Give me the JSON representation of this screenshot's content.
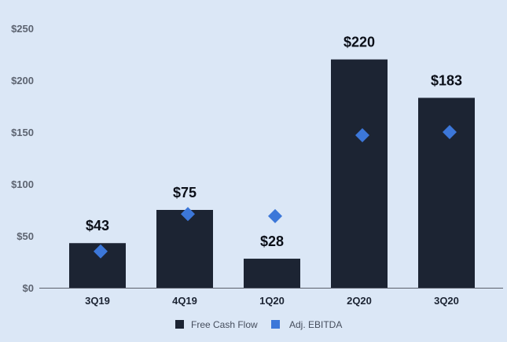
{
  "chart_data": {
    "type": "bar",
    "title": "",
    "xlabel": "",
    "ylabel": "",
    "categories": [
      "3Q19",
      "4Q19",
      "1Q20",
      "2Q20",
      "3Q20"
    ],
    "ylim": [
      0,
      250
    ],
    "yticks": [
      0,
      50,
      100,
      150,
      200,
      250
    ],
    "ytick_labels": [
      "$0",
      "$50",
      "$100",
      "$150",
      "$200",
      "$250"
    ],
    "grid": false,
    "legend_position": "bottom-center",
    "series": [
      {
        "name": "Free Cash Flow",
        "kind": "bar",
        "color": "#1c2433",
        "values": [
          43,
          75,
          28,
          220,
          183
        ],
        "labels": [
          "$43",
          "$75",
          "$28",
          "$220",
          "$183"
        ]
      },
      {
        "name": "Adj. EBITDA",
        "kind": "marker",
        "marker": "diamond",
        "color": "#3c77d9",
        "values": [
          35,
          71,
          69,
          147,
          150
        ]
      }
    ]
  }
}
